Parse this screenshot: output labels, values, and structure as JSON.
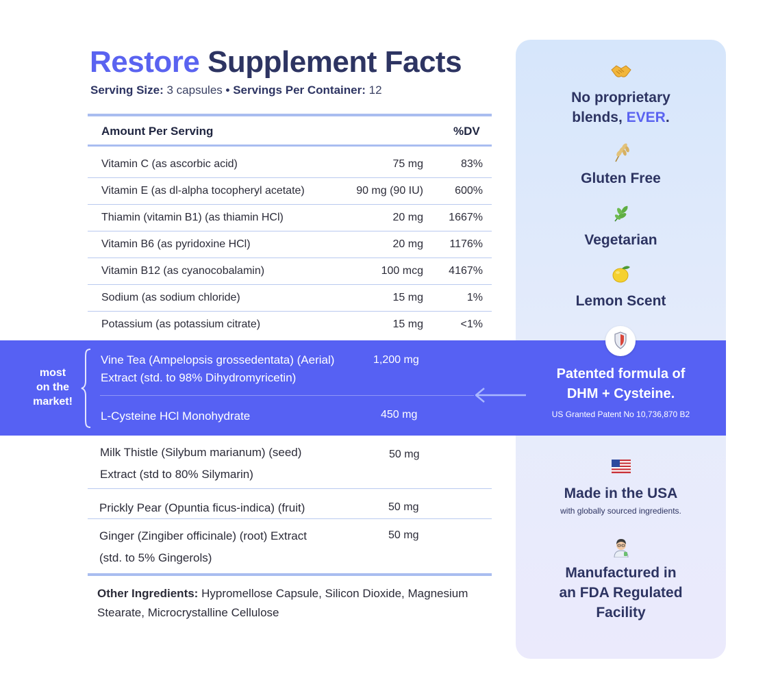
{
  "title": {
    "brand": "Restore",
    "rest": "Supplement Facts"
  },
  "serving": {
    "size_label": "Serving Size:",
    "size_value": "3 capsules",
    "separator": "•",
    "per_container_label": "Servings Per Container:",
    "per_container_value": "12"
  },
  "table": {
    "header": {
      "amount": "Amount Per Serving",
      "dv": "%DV"
    },
    "rows": [
      {
        "name": "Vitamin C (as ascorbic acid)",
        "amount": "75 mg",
        "dv": "83%"
      },
      {
        "name": "Vitamin E (as dl-alpha tocopheryl acetate)",
        "amount": "90 mg (90 IU)",
        "dv": "600%"
      },
      {
        "name": "Thiamin (vitamin B1) (as thiamin HCl)",
        "amount": "20 mg",
        "dv": "1667%"
      },
      {
        "name": "Vitamin B6 (as pyridoxine HCl)",
        "amount": "20 mg",
        "dv": "1176%"
      },
      {
        "name": "Vitamin B12 (as cyanocobalamin)",
        "amount": "100 mcg",
        "dv": "4167%"
      },
      {
        "name": "Sodium (as sodium chloride)",
        "amount": "15 mg",
        "dv": "1%"
      },
      {
        "name": "Potassium (as potassium citrate)",
        "amount": "15 mg",
        "dv": "<1%"
      }
    ],
    "highlight": {
      "side_label": [
        "most",
        "on the",
        "market!"
      ],
      "rows": [
        {
          "name_lines": [
            "Vine Tea (Ampelopsis grossedentata) (Aerial)",
            "Extract (std. to 98% Dihydromyricetin)"
          ],
          "amount": "1,200 mg"
        },
        {
          "name_lines": [
            "L-Cysteine HCl Monohydrate"
          ],
          "amount": "450 mg"
        }
      ]
    },
    "lower_rows": [
      {
        "name_lines": [
          "Milk Thistle (Silybum marianum) (seed)",
          "Extract (std to 80% Silymarin)"
        ],
        "amount": "50 mg"
      },
      {
        "name_lines": [
          "Prickly Pear (Opuntia ficus-indica) (fruit)"
        ],
        "amount": "50 mg"
      },
      {
        "name_lines": [
          "Ginger (Zingiber officinale) (root) Extract",
          "(std. to 5% Gingerols)"
        ],
        "amount": "50 mg"
      }
    ]
  },
  "other_ingredients": {
    "label": "Other Ingredients:",
    "text": " Hypromellose Capsule, Silicon Dioxide, Magnesium Stearate, Microcrystalline Cellulose"
  },
  "features": {
    "no_blends": {
      "icon": "handshake-icon",
      "line1": "No proprietary",
      "line2_pre": "blends, ",
      "line2_accent": "EVER",
      "line2_post": "."
    },
    "gluten": {
      "icon": "wheat-icon",
      "title": "Gluten Free"
    },
    "vegetarian": {
      "icon": "leaf-icon",
      "title": "Vegetarian"
    },
    "lemon": {
      "icon": "lemon-icon",
      "title": "Lemon Scent"
    },
    "patent": {
      "icon": "shield-icon",
      "line1": "Patented formula of",
      "line2": "DHM + Cysteine.",
      "sub": "US Granted Patent No 10,736,870 B2"
    },
    "usa": {
      "icon": "us-flag-icon",
      "title": "Made in the USA",
      "sub": "with globally sourced ingredients."
    },
    "fda": {
      "icon": "scientist-icon",
      "line1": "Manufactured in",
      "line2": "an FDA Regulated",
      "line3": "Facility"
    }
  },
  "colors": {
    "accent": "#5a63f0",
    "navy": "#2d3462",
    "band": "#5661f3",
    "panel": "#dde8fb",
    "rule": "#a9bdf0"
  }
}
